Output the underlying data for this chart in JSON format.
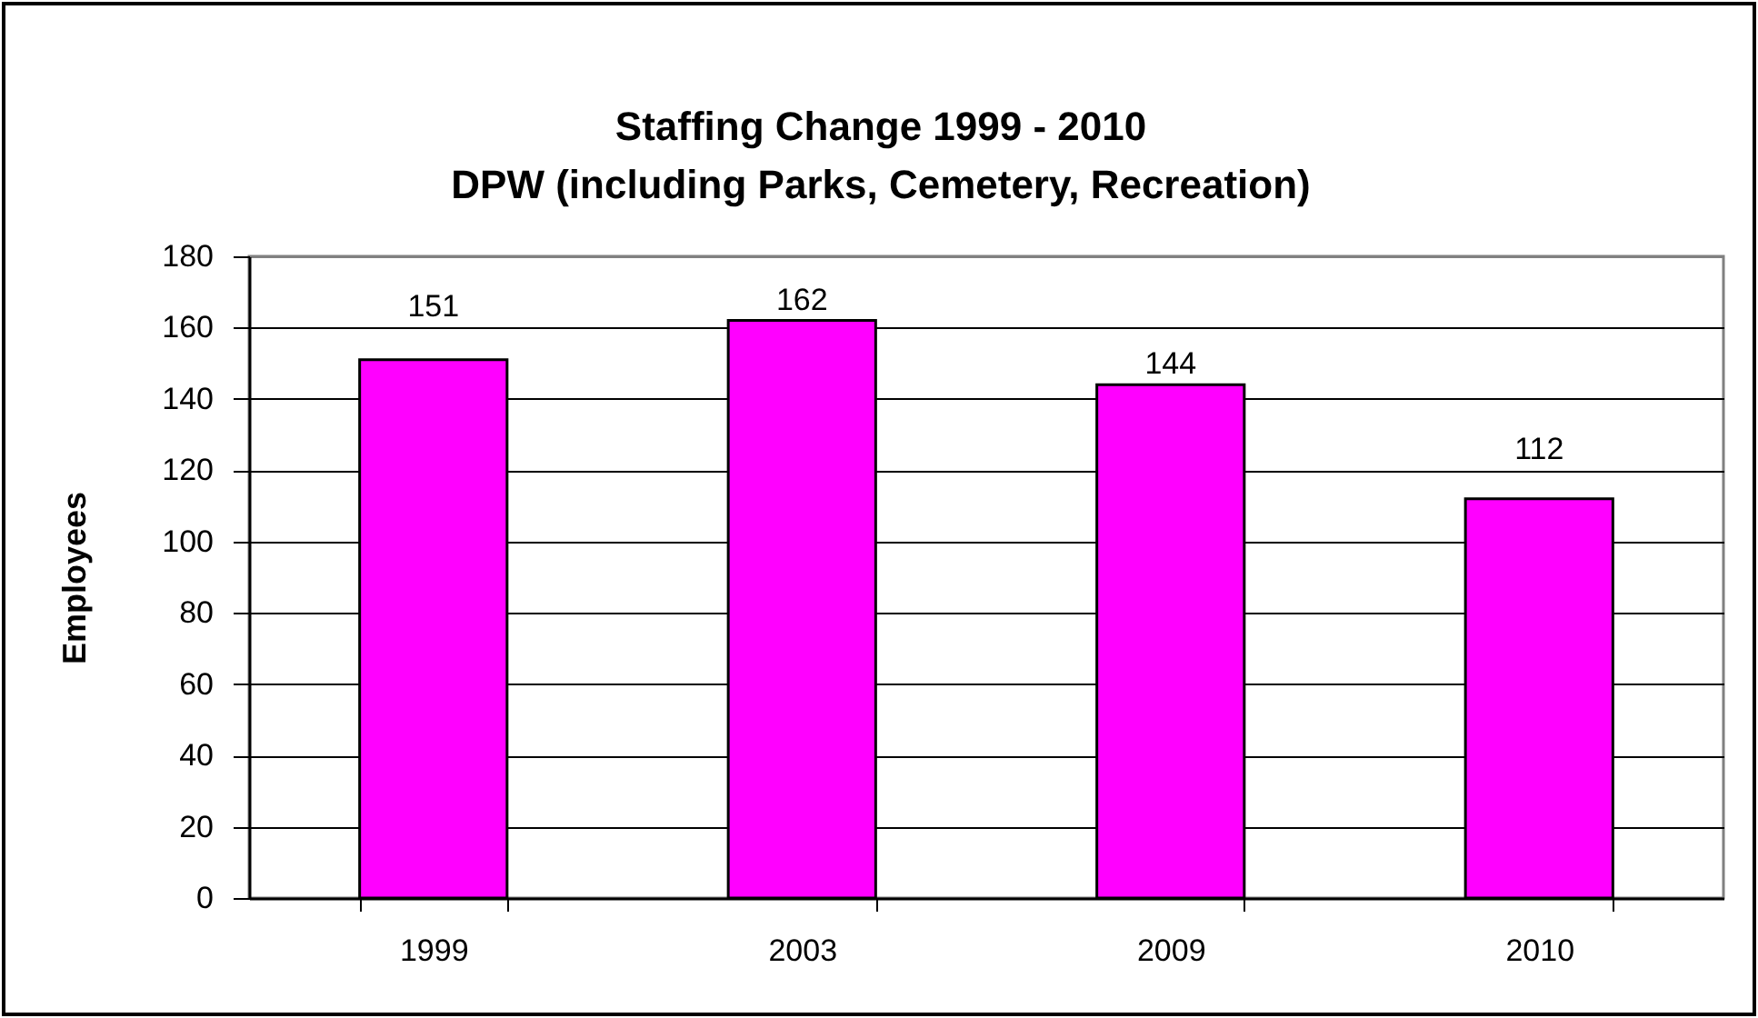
{
  "chart_data": {
    "type": "bar",
    "title": "Staffing Change 1999 - 2010",
    "subtitle": "DPW (including Parks, Cemetery, Recreation)",
    "ylabel": "Employees",
    "categories": [
      "1999",
      "2003",
      "2009",
      "2010"
    ],
    "values": [
      151,
      162,
      144,
      112
    ],
    "color": "#ff00ff",
    "ylim": [
      0,
      180
    ],
    "yticks": [
      0,
      20,
      40,
      60,
      80,
      100,
      120,
      140,
      160,
      180
    ],
    "grid": "y",
    "data_labels": true
  }
}
